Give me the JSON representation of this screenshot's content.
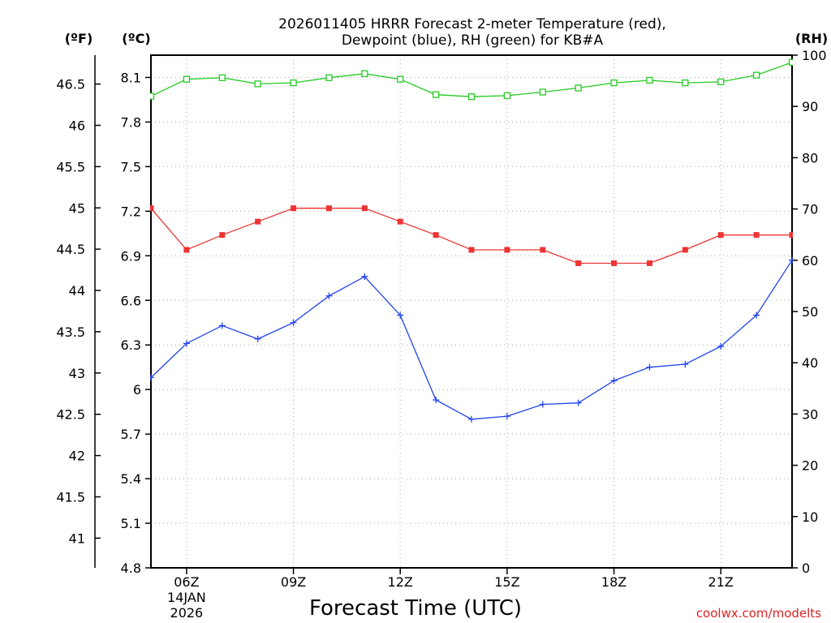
{
  "chart_data": {
    "type": "line",
    "title_lines": [
      "2026011405 HRRR Forecast 2-meter Temperature (red),",
      "Dewpoint (blue), RH (green) for KB#A"
    ],
    "units": {
      "fahrenheit": "(ºF)",
      "celsius": "(ºC)",
      "rh": "(RH)"
    },
    "xlabel": "Forecast Time (UTC)",
    "credit": "coolwx.com/modelts",
    "x_hours": [
      5,
      6,
      7,
      8,
      9,
      10,
      11,
      12,
      13,
      14,
      15,
      16,
      17,
      18,
      19,
      20,
      21,
      22,
      23
    ],
    "xlim": [
      5,
      23
    ],
    "x_ticks": [
      {
        "hour": 6,
        "label": "06Z",
        "sub1": "14JAN",
        "sub2": "2026"
      },
      {
        "hour": 9,
        "label": "09Z",
        "sub1": "",
        "sub2": ""
      },
      {
        "hour": 12,
        "label": "12Z",
        "sub1": "",
        "sub2": ""
      },
      {
        "hour": 15,
        "label": "15Z",
        "sub1": "",
        "sub2": ""
      },
      {
        "hour": 18,
        "label": "18Z",
        "sub1": "",
        "sub2": ""
      },
      {
        "hour": 21,
        "label": "21Z",
        "sub1": "",
        "sub2": ""
      }
    ],
    "celsius_axis": {
      "min": 4.8,
      "max": 8.25,
      "ticks": [
        "4.8",
        "5.1",
        "5.4",
        "5.7",
        "6",
        "6.3",
        "6.6",
        "6.9",
        "7.2",
        "7.5",
        "7.8",
        "8.1"
      ]
    },
    "fahrenheit_axis": {
      "ticks": [
        "41",
        "41.5",
        "42",
        "42.5",
        "43",
        "43.5",
        "44",
        "44.5",
        "45",
        "45.5",
        "46",
        "46.5"
      ]
    },
    "rh_axis": {
      "min": 0,
      "max": 100,
      "ticks": [
        "0",
        "10",
        "20",
        "30",
        "40",
        "50",
        "60",
        "70",
        "80",
        "90",
        "100"
      ]
    },
    "series": [
      {
        "name": "2-meter Temperature",
        "axis": "celsius",
        "color": "#ee3333",
        "marker": "filled-square",
        "values": [
          7.22,
          6.94,
          7.04,
          7.13,
          7.22,
          7.22,
          7.22,
          7.13,
          7.04,
          6.94,
          6.94,
          6.94,
          6.85,
          6.85,
          6.85,
          6.94,
          7.04,
          7.04,
          7.04
        ]
      },
      {
        "name": "Dewpoint",
        "axis": "celsius",
        "color": "#2244ee",
        "marker": "plus",
        "values": [
          6.08,
          6.31,
          6.43,
          6.34,
          6.45,
          6.63,
          6.76,
          6.5,
          5.93,
          5.8,
          5.82,
          5.9,
          5.91,
          6.06,
          6.15,
          6.17,
          6.29,
          6.5,
          6.87
        ]
      },
      {
        "name": "RH",
        "axis": "rh",
        "color": "#22cc22",
        "marker": "open-square",
        "values": [
          92,
          95.3,
          95.6,
          94.4,
          94.6,
          95.6,
          96.4,
          95.3,
          92.3,
          91.9,
          92.1,
          92.8,
          93.6,
          94.6,
          95.1,
          94.6,
          94.8,
          96.1,
          98.6
        ]
      }
    ]
  }
}
